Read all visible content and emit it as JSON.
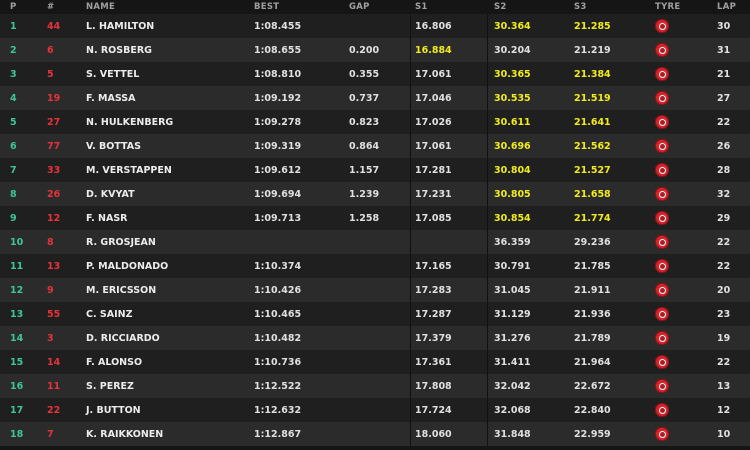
{
  "headers": {
    "pos": "P",
    "num": "#",
    "name": "NAME",
    "best": "BEST",
    "gap": "GAP",
    "s1": "S1",
    "s2": "S2",
    "s3": "S3",
    "tyre": "TYRE",
    "lap": "LAP"
  },
  "colors": {
    "position": "#3cc79a",
    "car_number": "#e8323a",
    "personal_best_sector": "#f2ec1f",
    "tyre_compound": "#d9232b"
  },
  "rows": [
    {
      "pos": "1",
      "num": "44",
      "name": "L. HAMILTON",
      "best": "1:08.455",
      "gap": "",
      "s1": "16.806",
      "s2": "30.364",
      "s3": "21.285",
      "tyre": "soft-tyre-icon",
      "lap": "30",
      "s1_hl": false,
      "s2_hl": true,
      "s3_hl": true
    },
    {
      "pos": "2",
      "num": "6",
      "name": "N. ROSBERG",
      "best": "1:08.655",
      "gap": "0.200",
      "s1": "16.884",
      "s2": "30.204",
      "s3": "21.219",
      "tyre": "soft-tyre-icon",
      "lap": "31",
      "s1_hl": true,
      "s2_hl": false,
      "s3_hl": false
    },
    {
      "pos": "3",
      "num": "5",
      "name": "S. VETTEL",
      "best": "1:08.810",
      "gap": "0.355",
      "s1": "17.061",
      "s2": "30.365",
      "s3": "21.384",
      "tyre": "soft-tyre-icon",
      "lap": "21",
      "s1_hl": false,
      "s2_hl": true,
      "s3_hl": true
    },
    {
      "pos": "4",
      "num": "19",
      "name": "F. MASSA",
      "best": "1:09.192",
      "gap": "0.737",
      "s1": "17.046",
      "s2": "30.535",
      "s3": "21.519",
      "tyre": "soft-tyre-icon",
      "lap": "27",
      "s1_hl": false,
      "s2_hl": true,
      "s3_hl": true
    },
    {
      "pos": "5",
      "num": "27",
      "name": "N. HULKENBERG",
      "best": "1:09.278",
      "gap": "0.823",
      "s1": "17.026",
      "s2": "30.611",
      "s3": "21.641",
      "tyre": "soft-tyre-icon",
      "lap": "22",
      "s1_hl": false,
      "s2_hl": true,
      "s3_hl": true
    },
    {
      "pos": "6",
      "num": "77",
      "name": "V. BOTTAS",
      "best": "1:09.319",
      "gap": "0.864",
      "s1": "17.061",
      "s2": "30.696",
      "s3": "21.562",
      "tyre": "soft-tyre-icon",
      "lap": "26",
      "s1_hl": false,
      "s2_hl": true,
      "s3_hl": true
    },
    {
      "pos": "7",
      "num": "33",
      "name": "M. VERSTAPPEN",
      "best": "1:09.612",
      "gap": "1.157",
      "s1": "17.281",
      "s2": "30.804",
      "s3": "21.527",
      "tyre": "soft-tyre-icon",
      "lap": "28",
      "s1_hl": false,
      "s2_hl": true,
      "s3_hl": true
    },
    {
      "pos": "8",
      "num": "26",
      "name": "D. KVYAT",
      "best": "1:09.694",
      "gap": "1.239",
      "s1": "17.231",
      "s2": "30.805",
      "s3": "21.658",
      "tyre": "soft-tyre-icon",
      "lap": "32",
      "s1_hl": false,
      "s2_hl": true,
      "s3_hl": true
    },
    {
      "pos": "9",
      "num": "12",
      "name": "F. NASR",
      "best": "1:09.713",
      "gap": "1.258",
      "s1": "17.085",
      "s2": "30.854",
      "s3": "21.774",
      "tyre": "soft-tyre-icon",
      "lap": "29",
      "s1_hl": false,
      "s2_hl": true,
      "s3_hl": true
    },
    {
      "pos": "10",
      "num": "8",
      "name": "R. GROSJEAN",
      "best": "",
      "gap": "",
      "s1": "",
      "s2": "36.359",
      "s3": "29.236",
      "tyre": "soft-tyre-icon",
      "lap": "22",
      "s1_hl": false,
      "s2_hl": false,
      "s3_hl": false
    },
    {
      "pos": "11",
      "num": "13",
      "name": "P. MALDONADO",
      "best": "1:10.374",
      "gap": "",
      "s1": "17.165",
      "s2": "30.791",
      "s3": "21.785",
      "tyre": "soft-tyre-icon",
      "lap": "22",
      "s1_hl": false,
      "s2_hl": false,
      "s3_hl": false
    },
    {
      "pos": "12",
      "num": "9",
      "name": "M. ERICSSON",
      "best": "1:10.426",
      "gap": "",
      "s1": "17.283",
      "s2": "31.045",
      "s3": "21.911",
      "tyre": "soft-tyre-icon",
      "lap": "20",
      "s1_hl": false,
      "s2_hl": false,
      "s3_hl": false
    },
    {
      "pos": "13",
      "num": "55",
      "name": "C. SAINZ",
      "best": "1:10.465",
      "gap": "",
      "s1": "17.287",
      "s2": "31.129",
      "s3": "21.936",
      "tyre": "soft-tyre-icon",
      "lap": "23",
      "s1_hl": false,
      "s2_hl": false,
      "s3_hl": false
    },
    {
      "pos": "14",
      "num": "3",
      "name": "D. RICCIARDO",
      "best": "1:10.482",
      "gap": "",
      "s1": "17.379",
      "s2": "31.276",
      "s3": "21.789",
      "tyre": "soft-tyre-icon",
      "lap": "19",
      "s1_hl": false,
      "s2_hl": false,
      "s3_hl": false
    },
    {
      "pos": "15",
      "num": "14",
      "name": "F. ALONSO",
      "best": "1:10.736",
      "gap": "",
      "s1": "17.361",
      "s2": "31.411",
      "s3": "21.964",
      "tyre": "soft-tyre-icon",
      "lap": "22",
      "s1_hl": false,
      "s2_hl": false,
      "s3_hl": false
    },
    {
      "pos": "16",
      "num": "11",
      "name": "S. PEREZ",
      "best": "1:12.522",
      "gap": "",
      "s1": "17.808",
      "s2": "32.042",
      "s3": "22.672",
      "tyre": "soft-tyre-icon",
      "lap": "13",
      "s1_hl": false,
      "s2_hl": false,
      "s3_hl": false
    },
    {
      "pos": "17",
      "num": "22",
      "name": "J. BUTTON",
      "best": "1:12.632",
      "gap": "",
      "s1": "17.724",
      "s2": "32.068",
      "s3": "22.840",
      "tyre": "soft-tyre-icon",
      "lap": "12",
      "s1_hl": false,
      "s2_hl": false,
      "s3_hl": false
    },
    {
      "pos": "18",
      "num": "7",
      "name": "K. RAIKKONEN",
      "best": "1:12.867",
      "gap": "",
      "s1": "18.060",
      "s2": "31.848",
      "s3": "22.959",
      "tyre": "soft-tyre-icon",
      "lap": "10",
      "s1_hl": false,
      "s2_hl": false,
      "s3_hl": false
    }
  ]
}
